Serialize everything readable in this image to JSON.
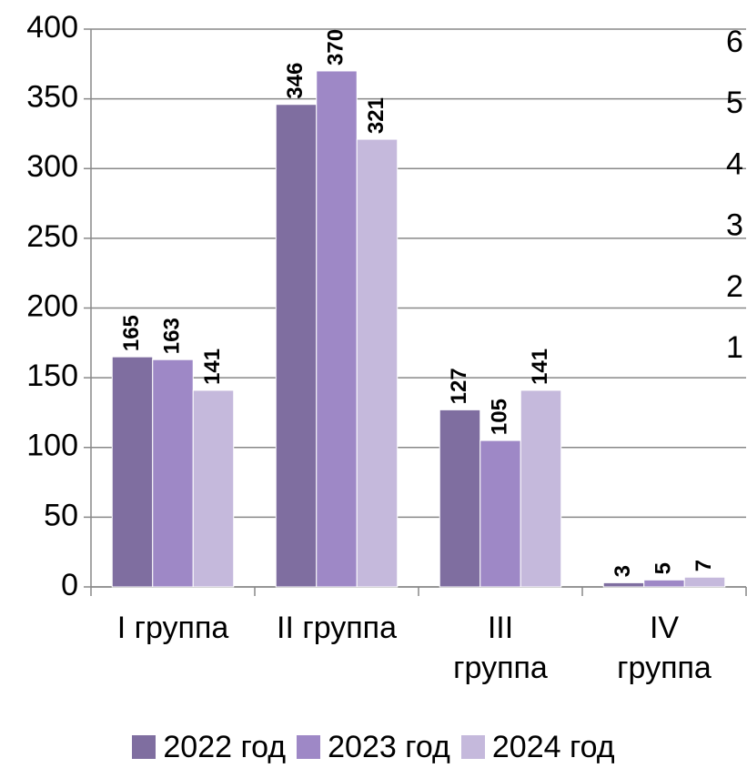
{
  "chart_data": {
    "type": "bar",
    "categories": [
      "I группа",
      "II группа",
      "III\nгруппа",
      "IV\nгруппа"
    ],
    "series": [
      {
        "name": "2022 год",
        "color": "#7f6ea0",
        "values": [
          165,
          346,
          127,
          3
        ]
      },
      {
        "name": "2023 год",
        "color": "#9e88c6",
        "values": [
          163,
          370,
          105,
          5
        ]
      },
      {
        "name": "2024 год",
        "color": "#c5b9dc",
        "values": [
          141,
          321,
          141,
          7
        ]
      }
    ],
    "ylim": [
      0,
      400
    ],
    "yticks": [
      0,
      50,
      100,
      150,
      200,
      250,
      300,
      350,
      400
    ],
    "y2lim": [
      1,
      6
    ],
    "y2ticks": [
      1,
      2,
      3,
      4,
      5,
      6
    ],
    "grid": true,
    "legend": "bottom"
  }
}
